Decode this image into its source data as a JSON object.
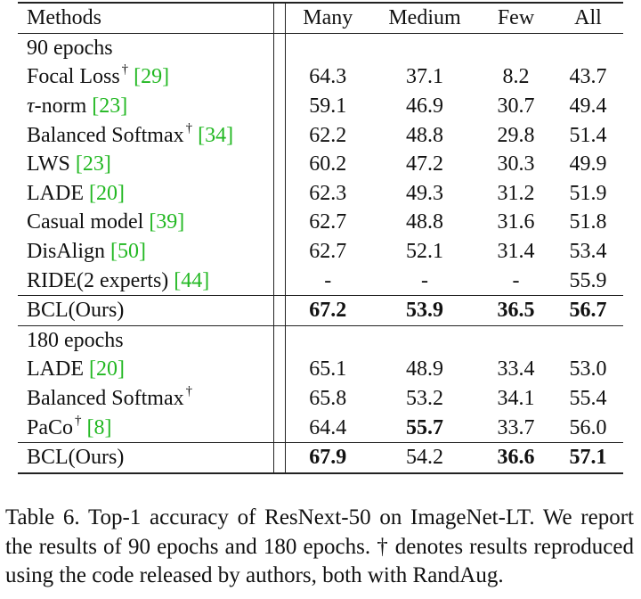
{
  "header": {
    "methods": "Methods",
    "many": "Many",
    "medium": "Medium",
    "few": "Few",
    "all": "All"
  },
  "groups": [
    {
      "label": "90 epochs",
      "rows": [
        {
          "name": "Focal Loss",
          "dagger": "†",
          "cite": "[29]",
          "many": "64.3",
          "medium": "37.1",
          "few": "8.2",
          "all": "43.7"
        },
        {
          "name_prefix": "τ",
          "name": "-norm",
          "cite": "[23]",
          "many": "59.1",
          "medium": "46.9",
          "few": "30.7",
          "all": "49.4"
        },
        {
          "name": "Balanced Softmax",
          "dagger": "†",
          "cite": "[34]",
          "many": "62.2",
          "medium": "48.8",
          "few": "29.8",
          "all": "51.4"
        },
        {
          "name": "LWS",
          "cite": "[23]",
          "many": "60.2",
          "medium": "47.2",
          "few": "30.3",
          "all": "49.9"
        },
        {
          "name": "LADE",
          "cite": "[20]",
          "many": "62.3",
          "medium": "49.3",
          "few": "31.2",
          "all": "51.9"
        },
        {
          "name": "Casual model",
          "cite": "[39]",
          "many": "62.7",
          "medium": "48.8",
          "few": "31.6",
          "all": "51.8"
        },
        {
          "name": "DisAlign",
          "cite": "[50]",
          "many": "62.7",
          "medium": "52.1",
          "few": "31.4",
          "all": "53.4"
        },
        {
          "name": "RIDE(2 experts)",
          "cite": "[44]",
          "many": "-",
          "medium": "-",
          "few": "-",
          "all": "55.9"
        }
      ],
      "ours": {
        "name": "BCL(Ours)",
        "many": "67.2",
        "medium": "53.9",
        "few": "36.5",
        "all": "56.7"
      }
    },
    {
      "label": "180 epochs",
      "rows": [
        {
          "name": "LADE",
          "cite": "[20]",
          "many": "65.1",
          "medium": "48.9",
          "few": "33.4",
          "all": "53.0"
        },
        {
          "name": "Balanced Softmax",
          "dagger": "†",
          "many": "65.8",
          "medium": "53.2",
          "few": "34.1",
          "all": "55.4"
        },
        {
          "name": "PaCo",
          "dagger": "†",
          "cite": "[8]",
          "many": "64.4",
          "medium": "55.7",
          "few": "33.7",
          "all": "56.0"
        }
      ],
      "ours": {
        "name": "BCL(Ours)",
        "many": "67.9",
        "medium": "54.2",
        "few": "36.6",
        "all": "57.1"
      }
    }
  ],
  "caption": "Table 6. Top-1 accuracy of ResNext-50 on ImageNet-LT. We report the results of 90 epochs and 180 epochs. † denotes results reproduced using the code released by authors, both with RandAug.",
  "colors": {
    "citation": "#22b822",
    "text": "#111111"
  }
}
